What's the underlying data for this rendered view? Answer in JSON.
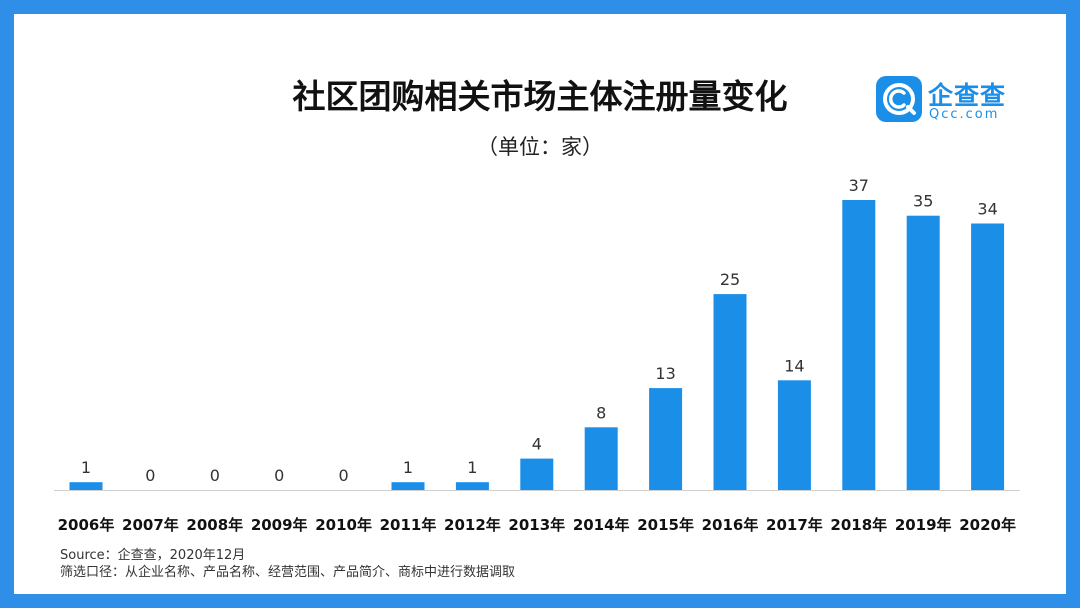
{
  "chart_data": {
    "type": "bar",
    "title": "社区团购相关市场主体注册量变化",
    "subtitle": "（单位：家）",
    "categories": [
      "2006年",
      "2007年",
      "2008年",
      "2009年",
      "2010年",
      "2011年",
      "2012年",
      "2013年",
      "2014年",
      "2015年",
      "2016年",
      "2017年",
      "2018年",
      "2019年",
      "2020年"
    ],
    "values": [
      1,
      0,
      0,
      0,
      0,
      1,
      1,
      4,
      8,
      13,
      25,
      14,
      37,
      35,
      34
    ],
    "ylim": [
      0,
      37
    ],
    "grid": false,
    "bar_color": "#1b8ee8"
  },
  "logo": {
    "name": "企查查",
    "domain": "Qcc.com",
    "brand_color": "#1b8ee8",
    "icon": "qcc-logo-icon"
  },
  "footer": {
    "source": "Source：企查查，2020年12月",
    "method": "筛选口径：从企业名称、产品名称、经营范围、产品简介、商标中进行数据调取"
  },
  "frame_color": "#2e8ee8"
}
